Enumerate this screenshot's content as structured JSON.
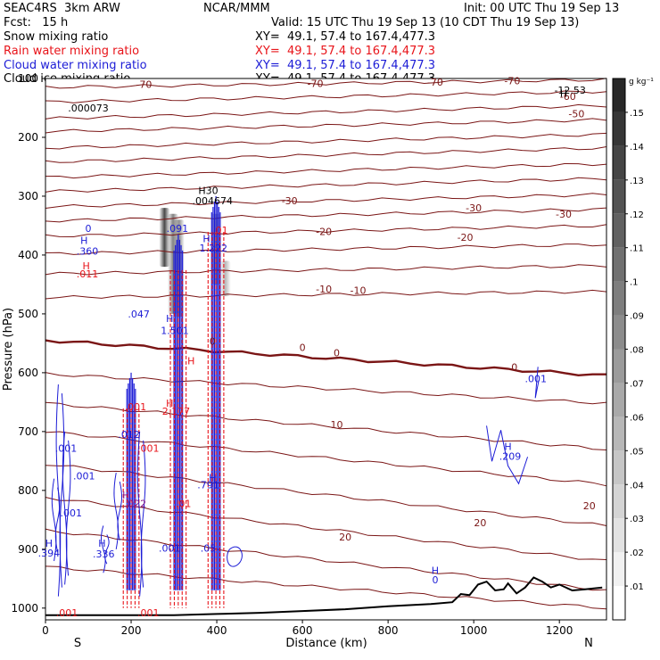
{
  "header": {
    "model": "SEAC4RS  3km ARW",
    "fcst": "Fcst:   15 h",
    "center": "NCAR/MMM",
    "init": "Init: 00 UTC Thu 19 Sep 13",
    "valid": "Valid: 15 UTC Thu 19 Sep 13 (10 CDT Thu 19 Sep 13)"
  },
  "fields": [
    {
      "name": "Snow mixing ratio",
      "xy": "XY=  49.1, 57.4 to 167.4,477.3",
      "color": "#000000"
    },
    {
      "name": "Rain water mixing ratio",
      "xy": "XY=  49.1, 57.4 to 167.4,477.3",
      "color": "#e8141a"
    },
    {
      "name": "Cloud water mixing ratio",
      "xy": "XY=  49.1, 57.4 to 167.4,477.3",
      "color": "#1c1cd6"
    },
    {
      "name": "Cloud ice mixing ratio",
      "xy": "XY=  49.1, 57.4 to 167.4,477.3",
      "color": "#000000"
    }
  ],
  "colors": {
    "isotherm": "#7a1515",
    "freezing": "#7a1515",
    "rain": "#e8141a",
    "cloud": "#1c1cd6",
    "terrain": "#000000"
  },
  "chart_data": {
    "type": "cross-section",
    "xlabel": "Distance (km)",
    "ylabel": "Pressure (hPa)",
    "xlim": [
      0,
      1310
    ],
    "ylim": [
      1020,
      100
    ],
    "xticks": [
      0,
      200,
      400,
      600,
      800,
      1000,
      1200
    ],
    "yticks": [
      100,
      200,
      300,
      400,
      500,
      600,
      700,
      800,
      900,
      1000
    ],
    "endpoint_left": "S",
    "endpoint_right": "N",
    "colorbar": {
      "unit": "g kg⁻¹",
      "ticks": [
        ".01",
        ".02",
        ".03",
        ".04",
        ".05",
        ".06",
        ".07",
        ".08",
        ".09",
        ".1",
        ".11",
        ".12",
        ".13",
        ".14",
        ".15"
      ]
    },
    "isotherms": [
      {
        "level": -70,
        "p_left": 115,
        "p_right": 102
      },
      {
        "level": -65,
        "p_left": 140,
        "p_right": 122
      },
      {
        "level": -60,
        "p_left": 168,
        "p_right": 146
      },
      {
        "level": -55,
        "p_left": 190,
        "p_right": 170
      },
      {
        "level": -50,
        "p_left": 218,
        "p_right": 195
      },
      {
        "level": -45,
        "p_left": 242,
        "p_right": 218
      },
      {
        "level": -40,
        "p_left": 268,
        "p_right": 245
      },
      {
        "level": -35,
        "p_left": 292,
        "p_right": 270
      },
      {
        "level": -30,
        "p_left": 318,
        "p_right": 297
      },
      {
        "level": -25,
        "p_left": 342,
        "p_right": 322
      },
      {
        "level": -20,
        "p_left": 368,
        "p_right": 350
      },
      {
        "level": -15,
        "p_left": 398,
        "p_right": 382
      },
      {
        "level": -10,
        "p_left": 432,
        "p_right": 418
      },
      {
        "level": -5,
        "p_left": 472,
        "p_right": 462
      },
      {
        "level": 0,
        "p_left": 545,
        "p_right": 605
      },
      {
        "level": 5,
        "p_left": 602,
        "p_right": 652
      },
      {
        "level": 10,
        "p_left": 652,
        "p_right": 730
      },
      {
        "level": 15,
        "p_left": 700,
        "p_right": 790
      },
      {
        "level": 20,
        "p_left": 755,
        "p_right": 860
      },
      {
        "level": 25,
        "p_left": 812,
        "p_right": 920
      },
      {
        "level": 30,
        "p_left": 868,
        "p_right": 970
      },
      {
        "level": 35,
        "p_left": 930,
        "p_right": 1000
      }
    ],
    "contour_labels": [
      {
        "text": "-70",
        "x": 230,
        "p": 110
      },
      {
        "text": "-70",
        "x": 630,
        "p": 108
      },
      {
        "text": "-70",
        "x": 910,
        "p": 106
      },
      {
        "text": "-70",
        "x": 1090,
        "p": 104
      },
      {
        "text": "-60",
        "x": 1220,
        "p": 130
      },
      {
        "text": "-50",
        "x": 1240,
        "p": 160
      },
      {
        "text": "-30",
        "x": 570,
        "p": 308
      },
      {
        "text": "-30",
        "x": 1000,
        "p": 320
      },
      {
        "text": "-30",
        "x": 1210,
        "p": 330
      },
      {
        "text": "-20",
        "x": 650,
        "p": 360
      },
      {
        "text": "-20",
        "x": 980,
        "p": 370
      },
      {
        "text": "-10",
        "x": 650,
        "p": 458
      },
      {
        "text": "-10",
        "x": 730,
        "p": 460
      },
      {
        "text": "0",
        "x": 390,
        "p": 546
      },
      {
        "text": "0",
        "x": 600,
        "p": 557
      },
      {
        "text": "0",
        "x": 680,
        "p": 566
      },
      {
        "text": "0",
        "x": 1095,
        "p": 590
      },
      {
        "text": "10",
        "x": 680,
        "p": 688
      },
      {
        "text": "20",
        "x": 700,
        "p": 879
      },
      {
        "text": "20",
        "x": 1015,
        "p": 855
      },
      {
        "text": "20",
        "x": 1270,
        "p": 826
      }
    ],
    "terrain": [
      [
        0,
        1012
      ],
      [
        300,
        1012
      ],
      [
        400,
        1010
      ],
      [
        500,
        1008
      ],
      [
        600,
        1005
      ],
      [
        700,
        1002
      ],
      [
        800,
        997
      ],
      [
        900,
        993
      ],
      [
        950,
        990
      ],
      [
        970,
        976
      ],
      [
        990,
        978
      ],
      [
        1010,
        960
      ],
      [
        1030,
        955
      ],
      [
        1050,
        970
      ],
      [
        1070,
        968
      ],
      [
        1080,
        958
      ],
      [
        1100,
        975
      ],
      [
        1120,
        965
      ],
      [
        1140,
        948
      ],
      [
        1160,
        955
      ],
      [
        1180,
        965
      ],
      [
        1200,
        960
      ],
      [
        1230,
        970
      ],
      [
        1260,
        968
      ],
      [
        1300,
        965
      ]
    ],
    "snow": [
      {
        "x": 278,
        "p_top": 320,
        "p_bottom": 420,
        "intensity": 0.13
      },
      {
        "x": 298,
        "p_top": 330,
        "p_bottom": 500,
        "intensity": 0.09
      },
      {
        "x": 312,
        "p_top": 340,
        "p_bottom": 505,
        "intensity": 0.08
      },
      {
        "x": 398,
        "p_top": 330,
        "p_bottom": 450,
        "intensity": 0.07
      },
      {
        "x": 420,
        "p_top": 410,
        "p_bottom": 470,
        "intensity": 0.05
      }
    ],
    "convective_cores": [
      {
        "x": 310,
        "p_top": 365,
        "p_bottom": 1000
      },
      {
        "x": 398,
        "p_top": 300,
        "p_bottom": 1000
      },
      {
        "x": 200,
        "p_top": 600,
        "p_bottom": 1000
      }
    ],
    "point_labels": [
      {
        "text": ".000073",
        "x": 100,
        "p": 150,
        "color": "black"
      },
      {
        "text": "H",
        "x": 1210,
        "p": 125,
        "color": "black"
      },
      {
        "text": "-12.53",
        "x": 1225,
        "p": 120,
        "color": "black"
      },
      {
        "text": "H30",
        "x": 380,
        "p": 290,
        "color": "black"
      },
      {
        "text": ".004674",
        "x": 390,
        "p": 308,
        "color": "black"
      },
      {
        "text": "0",
        "x": 100,
        "p": 355,
        "color": "blue"
      },
      {
        "text": "H",
        "x": 90,
        "p": 375,
        "color": "blue"
      },
      {
        "text": ".360",
        "x": 98,
        "p": 393,
        "color": "blue"
      },
      {
        "text": "H",
        "x": 95,
        "p": 418,
        "color": "red"
      },
      {
        "text": ".011",
        "x": 98,
        "p": 432,
        "color": "red"
      },
      {
        "text": ".047",
        "x": 218,
        "p": 500,
        "color": "blue"
      },
      {
        "text": ".091",
        "x": 308,
        "p": 355,
        "color": "blue"
      },
      {
        "text": "H",
        "x": 376,
        "p": 372,
        "color": "blue"
      },
      {
        "text": "1.222",
        "x": 392,
        "p": 388,
        "color": "blue"
      },
      {
        "text": ".01",
        "x": 408,
        "p": 358,
        "color": "red"
      },
      {
        "text": "H",
        "x": 290,
        "p": 508,
        "color": "blue"
      },
      {
        "text": "1.501",
        "x": 302,
        "p": 528,
        "color": "blue"
      },
      {
        "text": "H",
        "x": 290,
        "p": 652,
        "color": "red"
      },
      {
        "text": "2.177",
        "x": 305,
        "p": 665,
        "color": "red"
      },
      {
        "text": ".001",
        "x": 210,
        "p": 658,
        "color": "red"
      },
      {
        "text": ".012",
        "x": 195,
        "p": 705,
        "color": "blue"
      },
      {
        "text": ".001",
        "x": 240,
        "p": 728,
        "color": "red"
      },
      {
        "text": ".001",
        "x": 48,
        "p": 728,
        "color": "blue"
      },
      {
        "text": ".001",
        "x": 90,
        "p": 775,
        "color": "blue"
      },
      {
        "text": "H",
        "x": 390,
        "p": 778,
        "color": "blue"
      },
      {
        "text": ".791",
        "x": 380,
        "p": 790,
        "color": "blue"
      },
      {
        "text": "H",
        "x": 188,
        "p": 808,
        "color": "purple"
      },
      {
        "text": ".022",
        "x": 210,
        "p": 822,
        "color": "purple"
      },
      {
        "text": ".01",
        "x": 322,
        "p": 822,
        "color": "red"
      },
      {
        "text": ".001",
        "x": 60,
        "p": 838,
        "color": "blue"
      },
      {
        "text": "H",
        "x": 8,
        "p": 890,
        "color": "blue"
      },
      {
        "text": ".394",
        "x": 8,
        "p": 906,
        "color": "blue"
      },
      {
        "text": "H",
        "x": 132,
        "p": 890,
        "color": "blue"
      },
      {
        "text": ".336",
        "x": 136,
        "p": 908,
        "color": "blue"
      },
      {
        "text": ".001",
        "x": 290,
        "p": 898,
        "color": "blue"
      },
      {
        "text": ".05",
        "x": 380,
        "p": 898,
        "color": "blue"
      },
      {
        "text": "H",
        "x": 910,
        "p": 936,
        "color": "blue"
      },
      {
        "text": "0",
        "x": 910,
        "p": 952,
        "color": "blue"
      },
      {
        "text": "H",
        "x": 1080,
        "p": 725,
        "color": "blue"
      },
      {
        "text": ".209",
        "x": 1085,
        "p": 742,
        "color": "blue"
      },
      {
        "text": ".001",
        "x": 1145,
        "p": 610,
        "color": "blue"
      },
      {
        "text": ".001",
        "x": 50,
        "p": 1008,
        "color": "red"
      },
      {
        "text": ".001",
        "x": 240,
        "p": 1008,
        "color": "red"
      },
      {
        "text": "H",
        "x": 340,
        "p": 580,
        "color": "red"
      }
    ]
  }
}
